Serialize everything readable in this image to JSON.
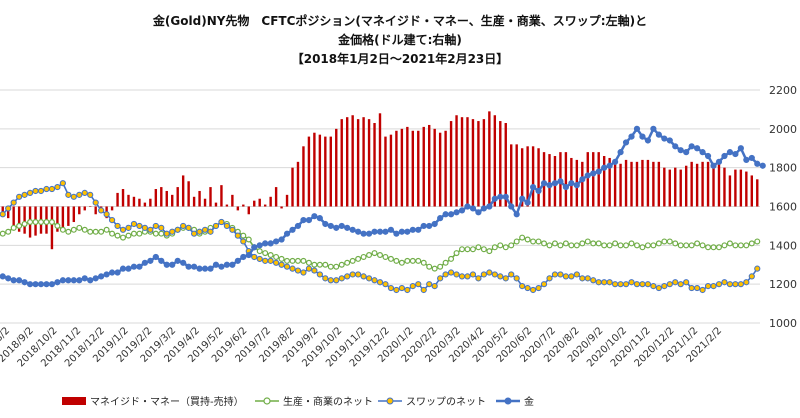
{
  "chart_data": {
    "type": "bar+line",
    "title_lines": [
      "金(Gold)NY先物　CFTCポジション(マネイジド・マネー、生産・商業、スワップ:左軸)と",
      "金価格(ドル建て:右軸)",
      "【2018年1月2日～2021年2月23日】"
    ],
    "right_axis": {
      "min": 1000,
      "max": 2200,
      "step": 200,
      "ticks": [
        "1000",
        "1200",
        "1400",
        "1600",
        "1800",
        "2000",
        "2200"
      ]
    },
    "x_labels": [
      "2018/8/2",
      "2018/9/2",
      "2018/10/2",
      "2018/11/2",
      "2018/12/2",
      "2019/1/2",
      "2019/2/2",
      "2019/3/2",
      "2019/4/2",
      "2019/5/2",
      "2019/6/2",
      "2019/7/2",
      "2019/8/2",
      "2019/9/2",
      "2019/10/2",
      "2019/11/2",
      "2019/12/2",
      "2020/1/2",
      "2020/2/2",
      "2020/3/2",
      "2020/4/2",
      "2020/5/2",
      "2020/6/2",
      "2020/7/2",
      "2020/8/2",
      "2020/9/2",
      "2020/10/2",
      "2020/11/2",
      "2020/12/2",
      "2021/1/2",
      "2021/2/2"
    ],
    "series": [
      {
        "name": "マネイジド・マネー（買持-売持）",
        "kind": "bar",
        "color": "#c00000",
        "values": [
          1560,
          1540,
          1500,
          1470,
          1460,
          1440,
          1450,
          1460,
          1460,
          1380,
          1470,
          1490,
          1500,
          1520,
          1560,
          1580,
          1600,
          1560,
          1590,
          1540,
          1580,
          1670,
          1690,
          1660,
          1650,
          1640,
          1620,
          1640,
          1690,
          1700,
          1680,
          1660,
          1700,
          1760,
          1730,
          1650,
          1680,
          1640,
          1700,
          1620,
          1710,
          1610,
          1660,
          1580,
          1610,
          1560,
          1630,
          1640,
          1610,
          1650,
          1700,
          1590,
          1660,
          1800,
          1830,
          1910,
          1960,
          1980,
          1970,
          1960,
          1960,
          2000,
          2050,
          2060,
          2070,
          2050,
          2060,
          2050,
          2030,
          2080,
          1960,
          1970,
          1990,
          2000,
          2010,
          1990,
          1990,
          2010,
          2020,
          2000,
          1980,
          1990,
          2040,
          2070,
          2060,
          2060,
          2050,
          2040,
          2050,
          2090,
          2070,
          2040,
          2030,
          1920,
          1920,
          1900,
          1910,
          1910,
          1900,
          1880,
          1870,
          1860,
          1880,
          1880,
          1850,
          1840,
          1830,
          1880,
          1880,
          1880,
          1860,
          1850,
          1840,
          1820,
          1840,
          1830,
          1830,
          1840,
          1840,
          1830,
          1830,
          1800,
          1790,
          1800,
          1790,
          1810,
          1830,
          1820,
          1830,
          1830,
          1820,
          1830,
          1800,
          1760,
          1790,
          1790,
          1780,
          1760,
          1740
        ]
      },
      {
        "name": "生産・商業のネット",
        "kind": "line-marker",
        "color": "#70ad47",
        "values": [
          1460,
          1470,
          1490,
          1500,
          1510,
          1520,
          1520,
          1520,
          1520,
          1520,
          1500,
          1480,
          1470,
          1480,
          1490,
          1480,
          1470,
          1470,
          1470,
          1480,
          1460,
          1450,
          1440,
          1450,
          1460,
          1460,
          1470,
          1470,
          1460,
          1460,
          1450,
          1460,
          1480,
          1490,
          1490,
          1480,
          1460,
          1470,
          1490,
          1500,
          1520,
          1510,
          1490,
          1470,
          1450,
          1430,
          1390,
          1370,
          1360,
          1350,
          1340,
          1330,
          1320,
          1320,
          1320,
          1320,
          1310,
          1300,
          1300,
          1300,
          1290,
          1290,
          1300,
          1310,
          1320,
          1330,
          1340,
          1350,
          1360,
          1350,
          1340,
          1330,
          1320,
          1310,
          1320,
          1320,
          1320,
          1310,
          1290,
          1280,
          1290,
          1310,
          1330,
          1360,
          1380,
          1380,
          1380,
          1390,
          1380,
          1370,
          1390,
          1400,
          1390,
          1400,
          1420,
          1440,
          1430,
          1420,
          1420,
          1410,
          1400,
          1410,
          1400,
          1410,
          1400,
          1400,
          1410,
          1420,
          1410,
          1410,
          1400,
          1400,
          1410,
          1400,
          1400,
          1410,
          1400,
          1390,
          1400,
          1400,
          1410,
          1420,
          1420,
          1410,
          1400,
          1400,
          1400,
          1410,
          1400,
          1390,
          1390,
          1390,
          1400,
          1410,
          1400,
          1400,
          1400,
          1410,
          1420
        ]
      },
      {
        "name": "スワップのネット",
        "kind": "line-marker",
        "color": "#ffc000",
        "values": [
          1560,
          1590,
          1620,
          1650,
          1660,
          1670,
          1680,
          1680,
          1690,
          1690,
          1700,
          1720,
          1660,
          1650,
          1660,
          1670,
          1660,
          1620,
          1580,
          1560,
          1530,
          1500,
          1480,
          1490,
          1510,
          1500,
          1490,
          1480,
          1500,
          1490,
          1460,
          1470,
          1480,
          1500,
          1490,
          1460,
          1470,
          1480,
          1470,
          1500,
          1520,
          1500,
          1480,
          1450,
          1420,
          1370,
          1340,
          1330,
          1320,
          1320,
          1310,
          1300,
          1290,
          1280,
          1270,
          1260,
          1280,
          1270,
          1250,
          1230,
          1220,
          1220,
          1230,
          1240,
          1250,
          1250,
          1240,
          1230,
          1220,
          1210,
          1200,
          1180,
          1170,
          1180,
          1170,
          1190,
          1200,
          1170,
          1200,
          1190,
          1230,
          1250,
          1260,
          1250,
          1240,
          1240,
          1250,
          1230,
          1250,
          1260,
          1250,
          1240,
          1230,
          1250,
          1230,
          1190,
          1180,
          1170,
          1180,
          1200,
          1230,
          1250,
          1250,
          1240,
          1240,
          1250,
          1230,
          1230,
          1220,
          1210,
          1210,
          1210,
          1200,
          1200,
          1200,
          1210,
          1200,
          1200,
          1200,
          1190,
          1180,
          1190,
          1200,
          1210,
          1200,
          1210,
          1180,
          1180,
          1170,
          1190,
          1190,
          1200,
          1210,
          1200,
          1200,
          1200,
          1210,
          1240,
          1280
        ]
      },
      {
        "name": "金",
        "kind": "line-marker",
        "color": "#4472c4",
        "values": [
          1240,
          1230,
          1220,
          1220,
          1210,
          1200,
          1200,
          1200,
          1200,
          1200,
          1210,
          1220,
          1220,
          1220,
          1220,
          1230,
          1220,
          1230,
          1240,
          1250,
          1260,
          1260,
          1280,
          1280,
          1290,
          1290,
          1310,
          1320,
          1340,
          1320,
          1300,
          1300,
          1320,
          1310,
          1290,
          1290,
          1280,
          1280,
          1280,
          1300,
          1290,
          1300,
          1300,
          1320,
          1340,
          1350,
          1390,
          1400,
          1410,
          1410,
          1420,
          1430,
          1460,
          1480,
          1500,
          1530,
          1530,
          1550,
          1540,
          1510,
          1500,
          1490,
          1500,
          1490,
          1480,
          1470,
          1460,
          1460,
          1470,
          1470,
          1470,
          1480,
          1460,
          1470,
          1470,
          1480,
          1480,
          1500,
          1500,
          1510,
          1540,
          1560,
          1560,
          1570,
          1580,
          1600,
          1590,
          1570,
          1590,
          1600,
          1640,
          1650,
          1650,
          1600,
          1560,
          1640,
          1620,
          1700,
          1680,
          1720,
          1710,
          1720,
          1730,
          1700,
          1720,
          1710,
          1740,
          1760,
          1770,
          1780,
          1800,
          1810,
          1830,
          1880,
          1930,
          1960,
          2000,
          1960,
          1940,
          2000,
          1970,
          1950,
          1940,
          1910,
          1890,
          1880,
          1910,
          1900,
          1880,
          1860,
          1810,
          1830,
          1860,
          1880,
          1870,
          1900,
          1840,
          1850,
          1820,
          1810
        ]
      }
    ]
  }
}
